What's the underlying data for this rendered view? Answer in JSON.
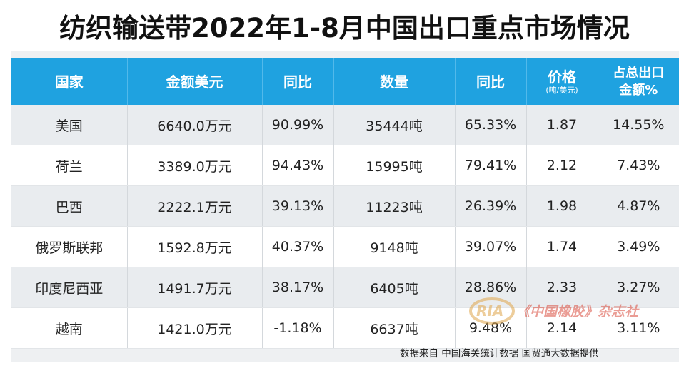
{
  "title": "纺织输送带2022年1-8月中国出口重点市场情况",
  "headers": {
    "country": "国家",
    "amount": "金额美元",
    "yoy1": "同比",
    "quantity": "数量",
    "yoy2": "同比",
    "price": "价格",
    "price_unit": "(吨/美元)",
    "share_line1": "占总出口",
    "share_line2": "金额%"
  },
  "rows": [
    {
      "country": "美国",
      "amount": "6640.0万元",
      "yoy1": "90.99%",
      "quantity": "35444吨",
      "yoy2": "65.33%",
      "price": "1.87",
      "share": "14.55%"
    },
    {
      "country": "荷兰",
      "amount": "3389.0万元",
      "yoy1": "94.43%",
      "quantity": "15995吨",
      "yoy2": "79.41%",
      "price": "2.12",
      "share": "7.43%"
    },
    {
      "country": "巴西",
      "amount": "2222.1万元",
      "yoy1": "39.13%",
      "quantity": "11223吨",
      "yoy2": "26.39%",
      "price": "1.98",
      "share": "4.87%"
    },
    {
      "country": "俄罗斯联邦",
      "amount": "1592.8万元",
      "yoy1": "40.37%",
      "quantity": "9148吨",
      "yoy2": "39.07%",
      "price": "1.74",
      "share": "3.49%"
    },
    {
      "country": "印度尼西亚",
      "amount": "1491.7万元",
      "yoy1": "38.17%",
      "quantity": "6405吨",
      "yoy2": "28.86%",
      "price": "2.33",
      "share": "3.27%"
    },
    {
      "country": "越南",
      "amount": "1421.0万元",
      "yoy1": "-1.18%",
      "quantity": "6637吨",
      "yoy2": "9.48%",
      "price": "2.14",
      "share": "3.11%"
    }
  ],
  "footer": "数据来自 中国海关统计数据 国贸通大数据提供",
  "watermark": {
    "logo_text": "RIA",
    "text": "《中国橡胶》杂志社"
  },
  "colors": {
    "header_bg": "#1fa2e0",
    "row_alt_bg": "#e9ecef",
    "watermark": "#d94c3d",
    "logo": "#e0a64a"
  }
}
